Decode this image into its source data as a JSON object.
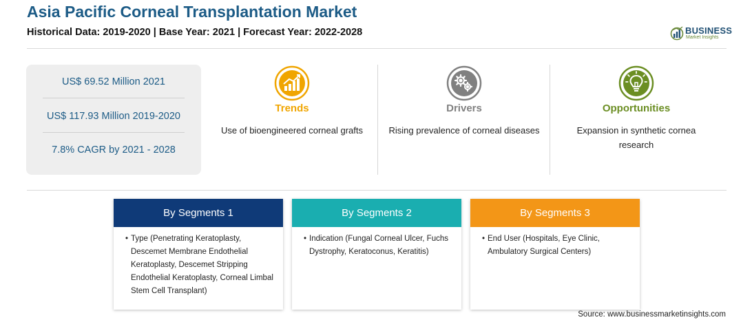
{
  "header": {
    "title": "Asia Pacific Corneal Transplantation Market",
    "subtitle": "Historical Data: 2019-2020 | Base Year: 2021 | Forecast Year: 2022-2028"
  },
  "logo": {
    "name": "BUSINESS",
    "tagline": "Market Insights",
    "icon": "globe-bars-icon"
  },
  "stats": [
    "US$ 69.52 Million 2021",
    "US$ 117.93 Million 2019-2020",
    "7.8% CAGR by 2021 - 2028"
  ],
  "factors": [
    {
      "title": "Trends",
      "description": "Use of bioengineered corneal grafts",
      "icon": "rising-chart-icon",
      "color": "#f0a500"
    },
    {
      "title": "Drivers",
      "description": "Rising prevalence of corneal diseases",
      "icon": "gears-icon",
      "color": "#808080"
    },
    {
      "title": "Opportunities",
      "description": "Expansion in synthetic cornea research",
      "icon": "lightbulb-icon",
      "color": "#6b8e23"
    }
  ],
  "segments": [
    {
      "title": "By Segments 1",
      "color": "#0f3a78",
      "bullet": "•",
      "text": "Type (Penetrating Keratoplasty, Descemet Membrane Endothelial Keratoplasty, Descemet Stripping Endothelial Keratoplasty, Corneal Limbal Stem Cell Transplant)"
    },
    {
      "title": "By Segments 2",
      "color": "#1aaeb0",
      "bullet": "•",
      "text": "Indication (Fungal Corneal Ulcer, Fuchs Dystrophy, Keratoconus, Keratitis)"
    },
    {
      "title": "By Segments 3",
      "color": "#f39617",
      "bullet": "•",
      "text": "End User (Hospitals, Eye Clinic, Ambulatory Surgical Centers)"
    }
  ],
  "source": "Source: www.businessmarketinsights.com"
}
